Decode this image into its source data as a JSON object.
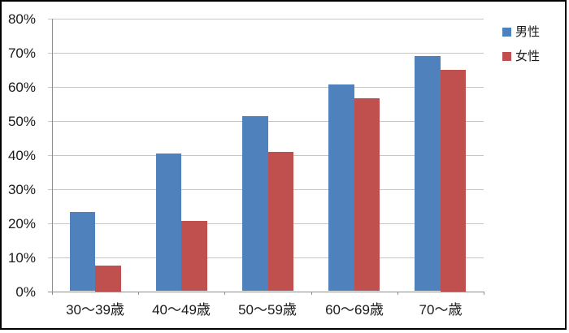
{
  "chart_data": {
    "type": "bar",
    "title": "",
    "xlabel": "",
    "ylabel": "",
    "categories": [
      "30〜39歳",
      "40〜49歳",
      "50〜59歳",
      "60〜69歳",
      "70〜歳"
    ],
    "series": [
      {
        "name": "男性",
        "color": "#4F81BD",
        "values": [
          23.2,
          40.5,
          51.3,
          60.6,
          69.0
        ]
      },
      {
        "name": "女性",
        "color": "#C0504D",
        "values": [
          7.5,
          20.7,
          41.0,
          56.7,
          65.0
        ]
      }
    ],
    "ylim": [
      0,
      80
    ],
    "ytick_step": 10,
    "ytick_labels": [
      "0%",
      "10%",
      "20%",
      "30%",
      "40%",
      "50%",
      "60%",
      "70%",
      "80%"
    ],
    "grid": true,
    "legend_position": "top-right"
  },
  "legend": {
    "items": [
      {
        "label": "男性",
        "color": "#4F81BD"
      },
      {
        "label": "女性",
        "color": "#C0504D"
      }
    ]
  },
  "colors": {
    "gridline": "#C6C6C6",
    "axis": "#8E8E8E",
    "text": "#1a1a1a",
    "frame_border": "#000000",
    "background": "#FFFFFF"
  }
}
